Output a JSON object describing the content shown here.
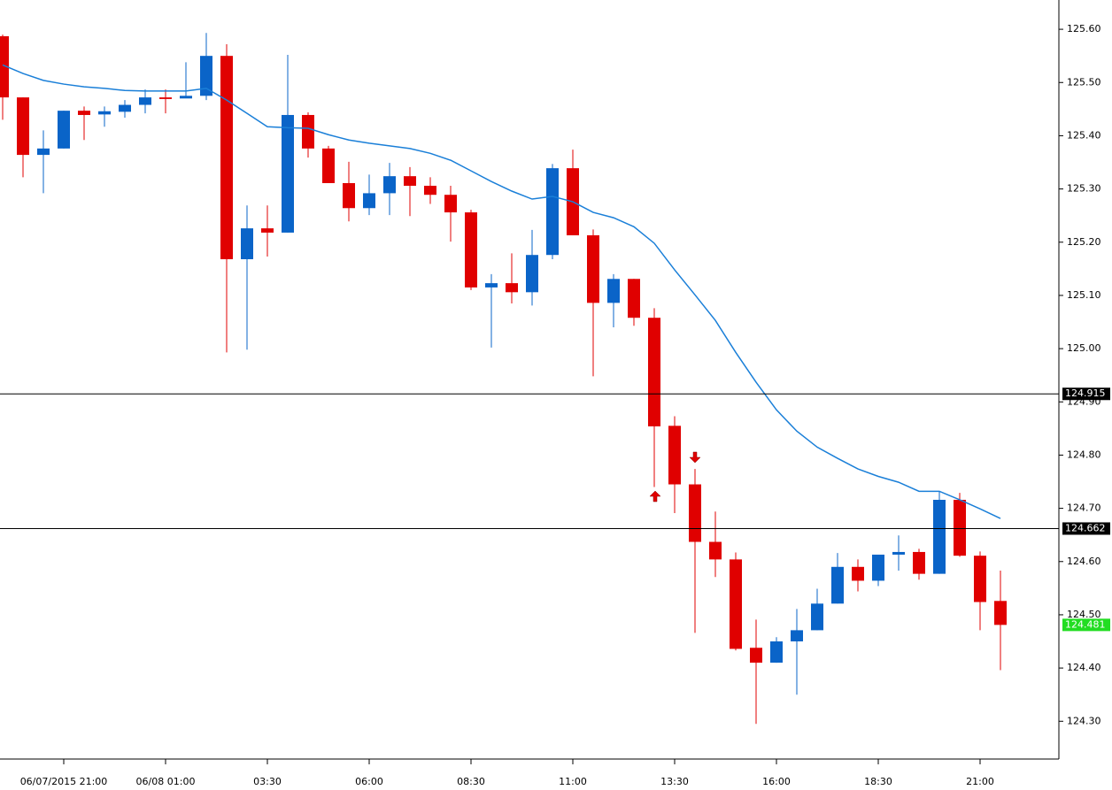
{
  "chart_data": {
    "type": "candlestick",
    "up_color": "#0a64c8",
    "down_color": "#e00000",
    "categories": [
      null,
      null,
      null,
      "06/07/2015 21:00",
      null,
      null,
      null,
      null,
      "06/08 01:00",
      null,
      null,
      null,
      null,
      "03:30",
      null,
      null,
      null,
      null,
      "06:00",
      null,
      null,
      null,
      null,
      "08:30",
      null,
      null,
      null,
      null,
      "11:00",
      null,
      null,
      null,
      null,
      "13:30",
      null,
      null,
      null,
      null,
      "16:00",
      null,
      null,
      null,
      null,
      "18:30",
      null,
      null,
      null,
      null,
      "21:00",
      null
    ],
    "open": [
      125.587,
      125.472,
      125.364,
      125.376,
      125.447,
      125.44,
      125.445,
      125.458,
      125.472,
      125.47,
      125.475,
      125.55,
      125.168,
      125.226,
      125.218,
      125.439,
      125.376,
      125.311,
      125.264,
      125.292,
      125.324,
      125.306,
      125.289,
      125.256,
      125.115,
      125.123,
      125.106,
      125.176,
      125.339,
      125.213,
      125.086,
      125.131,
      125.058,
      124.855,
      124.745,
      124.637,
      124.604,
      124.438,
      124.41,
      124.45,
      124.471,
      124.521,
      124.59,
      124.564,
      124.613,
      124.618,
      124.577,
      124.716,
      124.611,
      124.526
    ],
    "high": [
      125.59,
      125.472,
      125.41,
      125.447,
      125.455,
      125.455,
      125.467,
      125.487,
      125.487,
      125.538,
      125.593,
      125.572,
      125.269,
      125.269,
      125.552,
      125.444,
      125.381,
      125.351,
      125.327,
      125.349,
      125.341,
      125.322,
      125.306,
      125.261,
      125.14,
      125.179,
      125.223,
      125.347,
      125.374,
      125.224,
      125.14,
      125.131,
      125.076,
      124.873,
      124.774,
      124.694,
      124.617,
      124.491,
      124.458,
      124.511,
      124.549,
      124.616,
      124.604,
      124.613,
      124.649,
      124.624,
      124.732,
      124.729,
      124.619,
      124.583
    ],
    "low": [
      125.43,
      125.322,
      125.292,
      125.376,
      125.392,
      125.417,
      125.434,
      125.442,
      125.442,
      125.472,
      125.467,
      124.993,
      124.998,
      125.173,
      125.218,
      125.359,
      125.311,
      125.239,
      125.251,
      125.251,
      125.249,
      125.272,
      125.201,
      125.11,
      125.002,
      125.085,
      125.081,
      125.168,
      125.213,
      124.948,
      125.04,
      125.043,
      124.74,
      124.691,
      124.466,
      124.571,
      124.433,
      124.295,
      124.41,
      124.35,
      124.471,
      124.521,
      124.544,
      124.554,
      124.583,
      124.566,
      124.577,
      124.609,
      124.471,
      124.396
    ],
    "close": [
      125.472,
      125.364,
      125.376,
      125.447,
      125.439,
      125.446,
      125.458,
      125.472,
      125.469,
      125.475,
      125.55,
      125.168,
      125.226,
      125.218,
      125.439,
      125.376,
      125.311,
      125.264,
      125.292,
      125.324,
      125.306,
      125.289,
      125.256,
      125.115,
      125.123,
      125.106,
      125.176,
      125.339,
      125.213,
      125.086,
      125.131,
      125.058,
      124.854,
      124.745,
      124.637,
      124.604,
      124.436,
      124.41,
      124.45,
      124.471,
      124.521,
      124.59,
      124.564,
      124.613,
      124.618,
      124.577,
      124.716,
      124.611,
      124.524,
      124.481
    ],
    "overlay": {
      "color": "#1a7fd8",
      "values": [
        125.533,
        125.517,
        125.504,
        125.497,
        125.492,
        125.489,
        125.485,
        125.484,
        125.484,
        125.484,
        125.489,
        125.467,
        125.442,
        125.417,
        125.415,
        125.414,
        125.402,
        125.392,
        125.386,
        125.381,
        125.376,
        125.367,
        125.354,
        125.334,
        125.314,
        125.296,
        125.281,
        125.286,
        125.276,
        125.256,
        125.246,
        125.229,
        125.198,
        125.148,
        125.101,
        125.053,
        124.993,
        124.937,
        124.885,
        124.845,
        124.815,
        124.794,
        124.774,
        124.76,
        124.749,
        124.732,
        124.732,
        124.716,
        124.699,
        124.681
      ]
    },
    "levels": [
      {
        "value": 124.915,
        "color": "#000000"
      },
      {
        "value": 124.662,
        "color": "#000000"
      }
    ],
    "last_price": {
      "value": 124.481,
      "color": "#22dd22"
    },
    "ylim": [
      124.229,
      125.655
    ],
    "yticks": [
      {
        "value": 124.3,
        "label": "124.30"
      },
      {
        "value": 124.4,
        "label": "124.40"
      },
      {
        "value": 124.5,
        "label": "124.50"
      },
      {
        "value": 124.6,
        "label": "124.60"
      },
      {
        "value": 124.7,
        "label": "124.70"
      },
      {
        "value": 124.8,
        "label": "124.80"
      },
      {
        "value": 124.9,
        "label": "124.90"
      },
      {
        "value": 125.0,
        "label": "125.00"
      },
      {
        "value": 125.1,
        "label": "125.10"
      },
      {
        "value": 125.2,
        "label": "125.20"
      },
      {
        "value": 125.3,
        "label": "125.30"
      },
      {
        "value": 125.4,
        "label": "125.40"
      },
      {
        "value": 125.5,
        "label": "125.50"
      },
      {
        "value": 125.6,
        "label": "125.60"
      }
    ]
  }
}
